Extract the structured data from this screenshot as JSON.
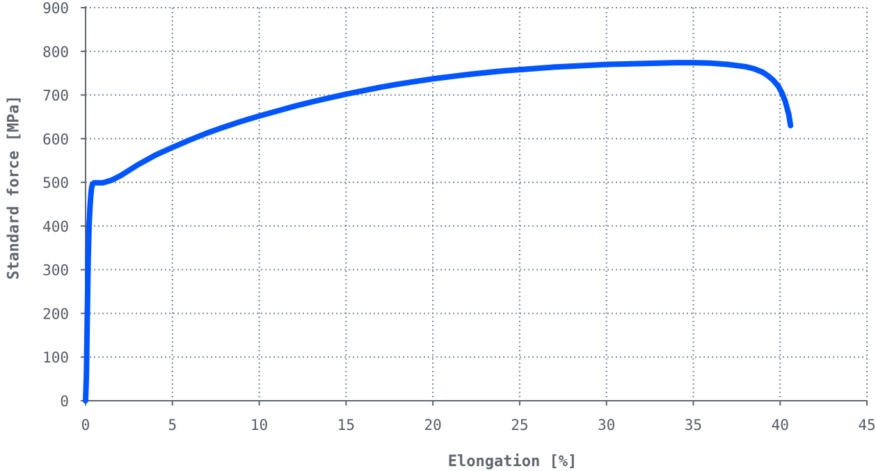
{
  "chart_data": {
    "type": "line",
    "title": "",
    "xlabel": "Elongation [%]",
    "ylabel": "Standard force [MPa]",
    "xlim": [
      0,
      45
    ],
    "ylim": [
      0,
      900
    ],
    "xticks": [
      0,
      5,
      10,
      15,
      20,
      25,
      30,
      35,
      40,
      45
    ],
    "yticks": [
      0,
      100,
      200,
      300,
      400,
      500,
      600,
      700,
      800,
      900
    ],
    "grid": true,
    "colors": {
      "series": "#0055ff",
      "grid": "#7d8a99",
      "axis": "#5f6670",
      "text": "#555c66"
    },
    "series": [
      {
        "x": [
          0,
          0.05,
          0.1,
          0.15,
          0.2,
          0.25,
          0.3,
          0.35,
          0.4,
          0.5,
          0.7,
          1.0,
          1.5,
          2.0,
          3.0,
          4.0,
          5.0,
          6.0,
          7.0,
          8.0,
          9.0,
          10.0,
          11.0,
          12.0,
          13.0,
          14.0,
          15.0,
          16.0,
          17.0,
          18.0,
          19.0,
          20.0,
          21.0,
          22.0,
          23.0,
          24.0,
          25.0,
          26.0,
          27.0,
          28.0,
          29.0,
          30.0,
          31.0,
          32.0,
          33.0,
          34.0,
          35.0,
          36.0,
          37.0,
          38.0,
          38.5,
          39.0,
          39.3,
          39.6,
          39.9,
          40.1,
          40.3,
          40.5,
          40.6
        ],
        "y": [
          0,
          60,
          200,
          320,
          400,
          440,
          470,
          488,
          496,
          499,
          499,
          499,
          505,
          515,
          540,
          562,
          580,
          597,
          613,
          627,
          640,
          652,
          663,
          674,
          684,
          693,
          702,
          710,
          718,
          725,
          731,
          737,
          742,
          747,
          751,
          755,
          758,
          761,
          764,
          766,
          768,
          770,
          771,
          772,
          773,
          774,
          774,
          773,
          770,
          765,
          760,
          752,
          744,
          734,
          720,
          705,
          685,
          655,
          630
        ]
      }
    ]
  }
}
